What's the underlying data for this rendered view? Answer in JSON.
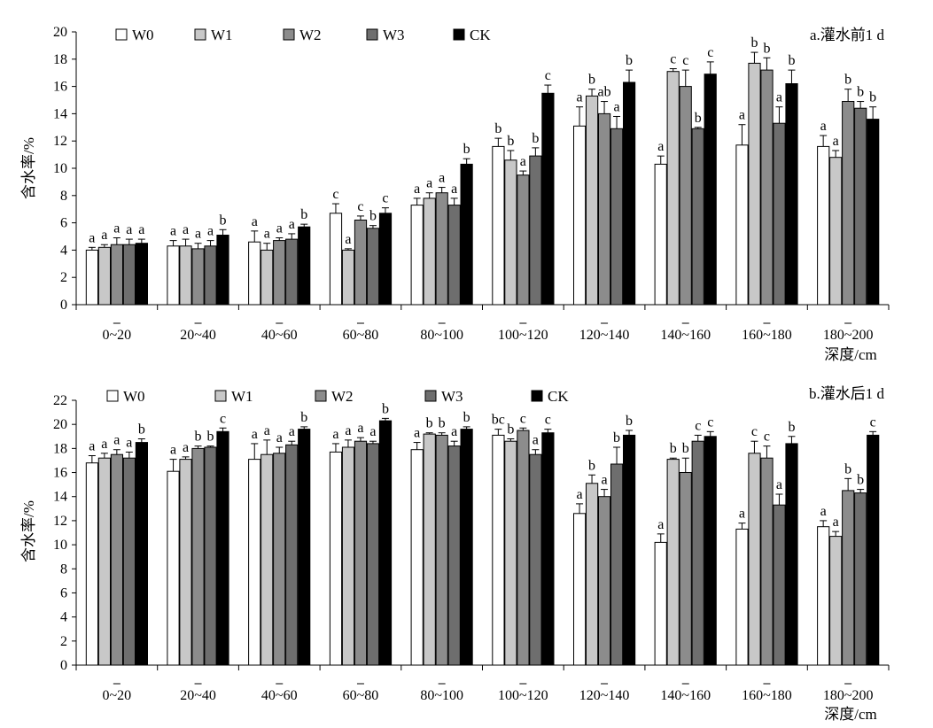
{
  "series_colors": {
    "W0": "#ffffff",
    "W1": "#c8c8c8",
    "W2": "#8c8c8c",
    "W3": "#6e6e6e",
    "CK": "#000000"
  },
  "chart_data": [
    {
      "type": "bar",
      "title": "a.灌水前1 d",
      "xlabel": "深度/cm",
      "ylabel": "含水率/%",
      "ylim": [
        0,
        20
      ],
      "yticks": [
        0,
        2,
        4,
        6,
        8,
        10,
        12,
        14,
        16,
        18,
        20
      ],
      "legend_position": "top-left",
      "categories": [
        "0~20",
        "20~40",
        "40~60",
        "60~80",
        "80~100",
        "100~120",
        "120~140",
        "140~160",
        "160~180",
        "180~200"
      ],
      "series": [
        {
          "name": "W0",
          "values": [
            4.0,
            4.3,
            4.6,
            6.7,
            7.3,
            11.6,
            13.1,
            10.3,
            11.7,
            11.6
          ],
          "errors": [
            0.2,
            0.4,
            0.8,
            0.7,
            0.5,
            0.6,
            1.4,
            0.6,
            1.5,
            0.8
          ],
          "labels": [
            "a",
            "a",
            "a",
            "c",
            "a",
            "b",
            "a",
            "a",
            "a",
            "a"
          ]
        },
        {
          "name": "W1",
          "values": [
            4.2,
            4.3,
            4.0,
            4.0,
            7.8,
            10.6,
            15.3,
            17.1,
            17.7,
            10.8
          ],
          "errors": [
            0.2,
            0.5,
            0.5,
            0.1,
            0.4,
            0.7,
            0.5,
            0.2,
            0.8,
            0.5
          ],
          "labels": [
            "a",
            "a",
            "a",
            "a",
            "a",
            "b",
            "b",
            "c",
            "b",
            "a"
          ]
        },
        {
          "name": "W2",
          "values": [
            4.4,
            4.1,
            4.7,
            6.2,
            8.2,
            9.5,
            14.0,
            16.0,
            17.2,
            14.9
          ],
          "errors": [
            0.5,
            0.4,
            0.2,
            0.3,
            0.4,
            0.3,
            0.9,
            1.2,
            0.9,
            0.9
          ],
          "labels": [
            "a",
            "a",
            "a",
            "c",
            "a",
            "a",
            "ab",
            "c",
            "b",
            "b"
          ]
        },
        {
          "name": "W3",
          "values": [
            4.4,
            4.3,
            4.8,
            5.6,
            7.3,
            10.9,
            12.9,
            12.9,
            13.3,
            14.4
          ],
          "errors": [
            0.4,
            0.4,
            0.4,
            0.2,
            0.5,
            0.6,
            0.9,
            0.1,
            1.2,
            0.5
          ],
          "labels": [
            "a",
            "a",
            "a",
            "b",
            "a",
            "b",
            "a",
            "b",
            "a",
            "b"
          ]
        },
        {
          "name": "CK",
          "values": [
            4.5,
            5.1,
            5.7,
            6.7,
            10.3,
            15.5,
            16.3,
            16.9,
            16.2,
            13.6
          ],
          "errors": [
            0.3,
            0.4,
            0.2,
            0.4,
            0.4,
            0.6,
            0.9,
            0.9,
            1.0,
            0.9
          ],
          "labels": [
            "a",
            "b",
            "b",
            "c",
            "b",
            "c",
            "b",
            "c",
            "b",
            "b"
          ]
        }
      ]
    },
    {
      "type": "bar",
      "title": "b.灌水后1 d",
      "xlabel": "深度/cm",
      "ylabel": "含水率/%",
      "ylim": [
        0,
        22
      ],
      "yticks": [
        0,
        2,
        4,
        6,
        8,
        10,
        12,
        14,
        16,
        18,
        20,
        22
      ],
      "legend_position": "top-left",
      "categories": [
        "0~20",
        "20~40",
        "40~60",
        "60~80",
        "80~100",
        "100~120",
        "120~140",
        "140~160",
        "160~180",
        "180~200"
      ],
      "series": [
        {
          "name": "W0",
          "values": [
            16.8,
            16.1,
            17.1,
            17.7,
            17.9,
            19.1,
            12.6,
            10.2,
            11.3,
            11.5
          ],
          "errors": [
            0.6,
            1.0,
            1.3,
            0.7,
            0.6,
            0.5,
            0.8,
            0.7,
            0.5,
            0.5
          ],
          "labels": [
            "a",
            "a",
            "a",
            "a",
            "a",
            "bc",
            "a",
            "a",
            "a",
            "a"
          ]
        },
        {
          "name": "W1",
          "values": [
            17.2,
            17.1,
            17.5,
            18.1,
            19.2,
            18.6,
            15.1,
            17.1,
            17.6,
            10.7
          ],
          "errors": [
            0.4,
            0.2,
            1.2,
            0.6,
            0.1,
            0.2,
            0.7,
            0.1,
            1.0,
            0.4
          ],
          "labels": [
            "a",
            "a",
            "a",
            "a",
            "b",
            "b",
            "b",
            "b",
            "c",
            "a"
          ]
        },
        {
          "name": "W2",
          "values": [
            17.5,
            18.0,
            17.6,
            18.6,
            19.1,
            19.5,
            14.0,
            16.0,
            17.2,
            14.5
          ],
          "errors": [
            0.4,
            0.2,
            0.5,
            0.3,
            0.2,
            0.2,
            0.6,
            1.2,
            1.0,
            1.0
          ],
          "labels": [
            "a",
            "b",
            "a",
            "a",
            "b",
            "c",
            "a",
            "b",
            "c",
            "b"
          ]
        },
        {
          "name": "W3",
          "values": [
            17.2,
            18.1,
            18.3,
            18.4,
            18.2,
            17.5,
            16.7,
            18.6,
            13.3,
            14.3
          ],
          "errors": [
            0.5,
            0.1,
            0.3,
            0.2,
            0.4,
            0.4,
            1.4,
            0.5,
            0.9,
            0.3
          ],
          "labels": [
            "a",
            "b",
            "a",
            "a",
            "a",
            "a",
            "b",
            "c",
            "a",
            "b"
          ]
        },
        {
          "name": "CK",
          "values": [
            18.5,
            19.4,
            19.6,
            20.3,
            19.6,
            19.3,
            19.1,
            19.0,
            18.4,
            19.1
          ],
          "errors": [
            0.3,
            0.3,
            0.2,
            0.2,
            0.2,
            0.3,
            0.4,
            0.4,
            0.6,
            0.3
          ],
          "labels": [
            "b",
            "c",
            "b",
            "b",
            "b",
            "c",
            "b",
            "c",
            "b",
            "c"
          ]
        }
      ]
    }
  ]
}
